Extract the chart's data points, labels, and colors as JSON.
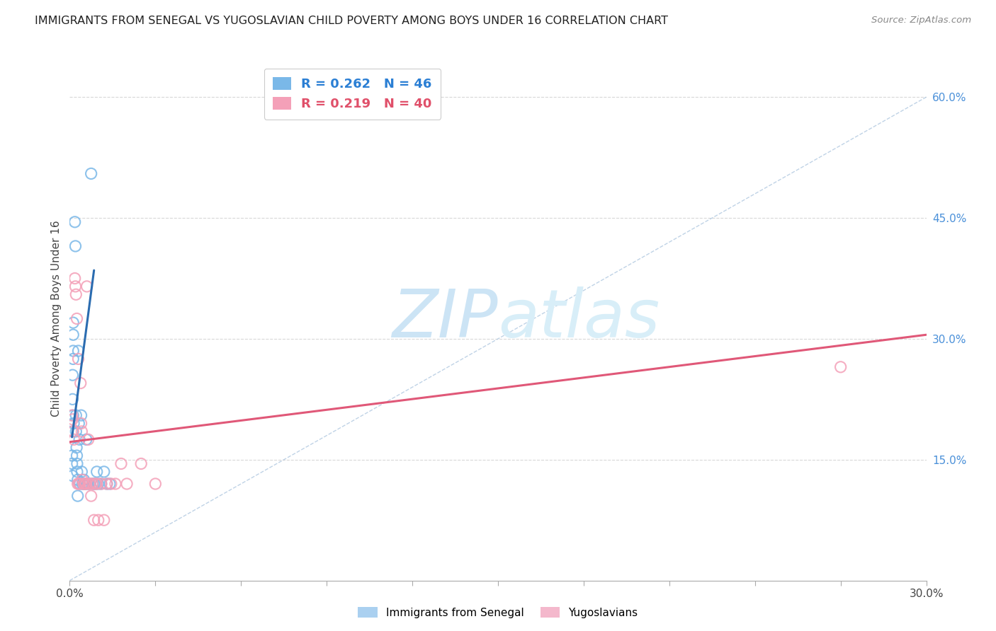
{
  "title": "IMMIGRANTS FROM SENEGAL VS YUGOSLAVIAN CHILD POVERTY AMONG BOYS UNDER 16 CORRELATION CHART",
  "source": "Source: ZipAtlas.com",
  "ylabel": "Child Poverty Among Boys Under 16",
  "xlim": [
    0.0,
    0.3
  ],
  "ylim": [
    0.0,
    0.65
  ],
  "right_yticks": [
    0.15,
    0.3,
    0.45,
    0.6
  ],
  "right_yticklabels": [
    "15.0%",
    "30.0%",
    "45.0%",
    "60.0%"
  ],
  "xticks": [
    0.0,
    0.03,
    0.06,
    0.09,
    0.12,
    0.15,
    0.18,
    0.21,
    0.24,
    0.27,
    0.3
  ],
  "xticklabels_show": {
    "0": "0.0%",
    "10": "30.0%"
  },
  "blue_R": 0.262,
  "blue_N": 46,
  "pink_R": 0.219,
  "pink_N": 40,
  "blue_color": "#7ab8e8",
  "pink_color": "#f4a0b8",
  "blue_scatter": [
    [
      0.0008,
      0.155
    ],
    [
      0.0008,
      0.145
    ],
    [
      0.001,
      0.13
    ],
    [
      0.001,
      0.185
    ],
    [
      0.001,
      0.225
    ],
    [
      0.001,
      0.255
    ],
    [
      0.0012,
      0.275
    ],
    [
      0.0012,
      0.285
    ],
    [
      0.0012,
      0.305
    ],
    [
      0.0012,
      0.32
    ],
    [
      0.0012,
      0.205
    ],
    [
      0.0014,
      0.195
    ],
    [
      0.0018,
      0.445
    ],
    [
      0.002,
      0.415
    ],
    [
      0.0022,
      0.205
    ],
    [
      0.0022,
      0.185
    ],
    [
      0.0024,
      0.165
    ],
    [
      0.0025,
      0.155
    ],
    [
      0.0026,
      0.145
    ],
    [
      0.0026,
      0.135
    ],
    [
      0.0028,
      0.125
    ],
    [
      0.0028,
      0.105
    ],
    [
      0.003,
      0.285
    ],
    [
      0.0032,
      0.195
    ],
    [
      0.0034,
      0.175
    ],
    [
      0.0036,
      0.12
    ],
    [
      0.004,
      0.205
    ],
    [
      0.0042,
      0.135
    ],
    [
      0.0044,
      0.12
    ],
    [
      0.0048,
      0.12
    ],
    [
      0.005,
      0.125
    ],
    [
      0.0052,
      0.12
    ],
    [
      0.0055,
      0.12
    ],
    [
      0.0058,
      0.175
    ],
    [
      0.0062,
      0.12
    ],
    [
      0.0068,
      0.12
    ],
    [
      0.0075,
      0.505
    ],
    [
      0.008,
      0.12
    ],
    [
      0.0085,
      0.12
    ],
    [
      0.009,
      0.12
    ],
    [
      0.0095,
      0.135
    ],
    [
      0.01,
      0.12
    ],
    [
      0.011,
      0.12
    ],
    [
      0.012,
      0.135
    ],
    [
      0.013,
      0.12
    ],
    [
      0.014,
      0.12
    ]
  ],
  "pink_scatter": [
    [
      0.0008,
      0.205
    ],
    [
      0.001,
      0.2
    ],
    [
      0.0012,
      0.185
    ],
    [
      0.0015,
      0.175
    ],
    [
      0.0018,
      0.375
    ],
    [
      0.002,
      0.365
    ],
    [
      0.0022,
      0.355
    ],
    [
      0.0025,
      0.325
    ],
    [
      0.0028,
      0.12
    ],
    [
      0.003,
      0.275
    ],
    [
      0.0032,
      0.12
    ],
    [
      0.0035,
      0.12
    ],
    [
      0.0038,
      0.245
    ],
    [
      0.004,
      0.195
    ],
    [
      0.0042,
      0.185
    ],
    [
      0.0044,
      0.125
    ],
    [
      0.0048,
      0.12
    ],
    [
      0.005,
      0.12
    ],
    [
      0.0055,
      0.12
    ],
    [
      0.0058,
      0.12
    ],
    [
      0.006,
      0.365
    ],
    [
      0.0065,
      0.175
    ],
    [
      0.0068,
      0.12
    ],
    [
      0.0072,
      0.12
    ],
    [
      0.0075,
      0.105
    ],
    [
      0.008,
      0.12
    ],
    [
      0.0085,
      0.075
    ],
    [
      0.009,
      0.12
    ],
    [
      0.0095,
      0.12
    ],
    [
      0.01,
      0.075
    ],
    [
      0.011,
      0.12
    ],
    [
      0.012,
      0.075
    ],
    [
      0.013,
      0.12
    ],
    [
      0.0145,
      0.12
    ],
    [
      0.016,
      0.12
    ],
    [
      0.018,
      0.145
    ],
    [
      0.02,
      0.12
    ],
    [
      0.025,
      0.145
    ],
    [
      0.03,
      0.12
    ],
    [
      0.27,
      0.265
    ]
  ],
  "blue_line_x": [
    0.0008,
    0.0085
  ],
  "blue_line_y": [
    0.178,
    0.385
  ],
  "pink_line_x": [
    0.0,
    0.3
  ],
  "pink_line_y": [
    0.172,
    0.305
  ],
  "ref_line_x": [
    0.0,
    0.3
  ],
  "ref_line_y": [
    0.0,
    0.6
  ],
  "watermark_zip": "ZIP",
  "watermark_atlas": "atlas",
  "watermark_color": "#cce4f5",
  "background_color": "#ffffff",
  "grid_color": "#d8d8d8"
}
